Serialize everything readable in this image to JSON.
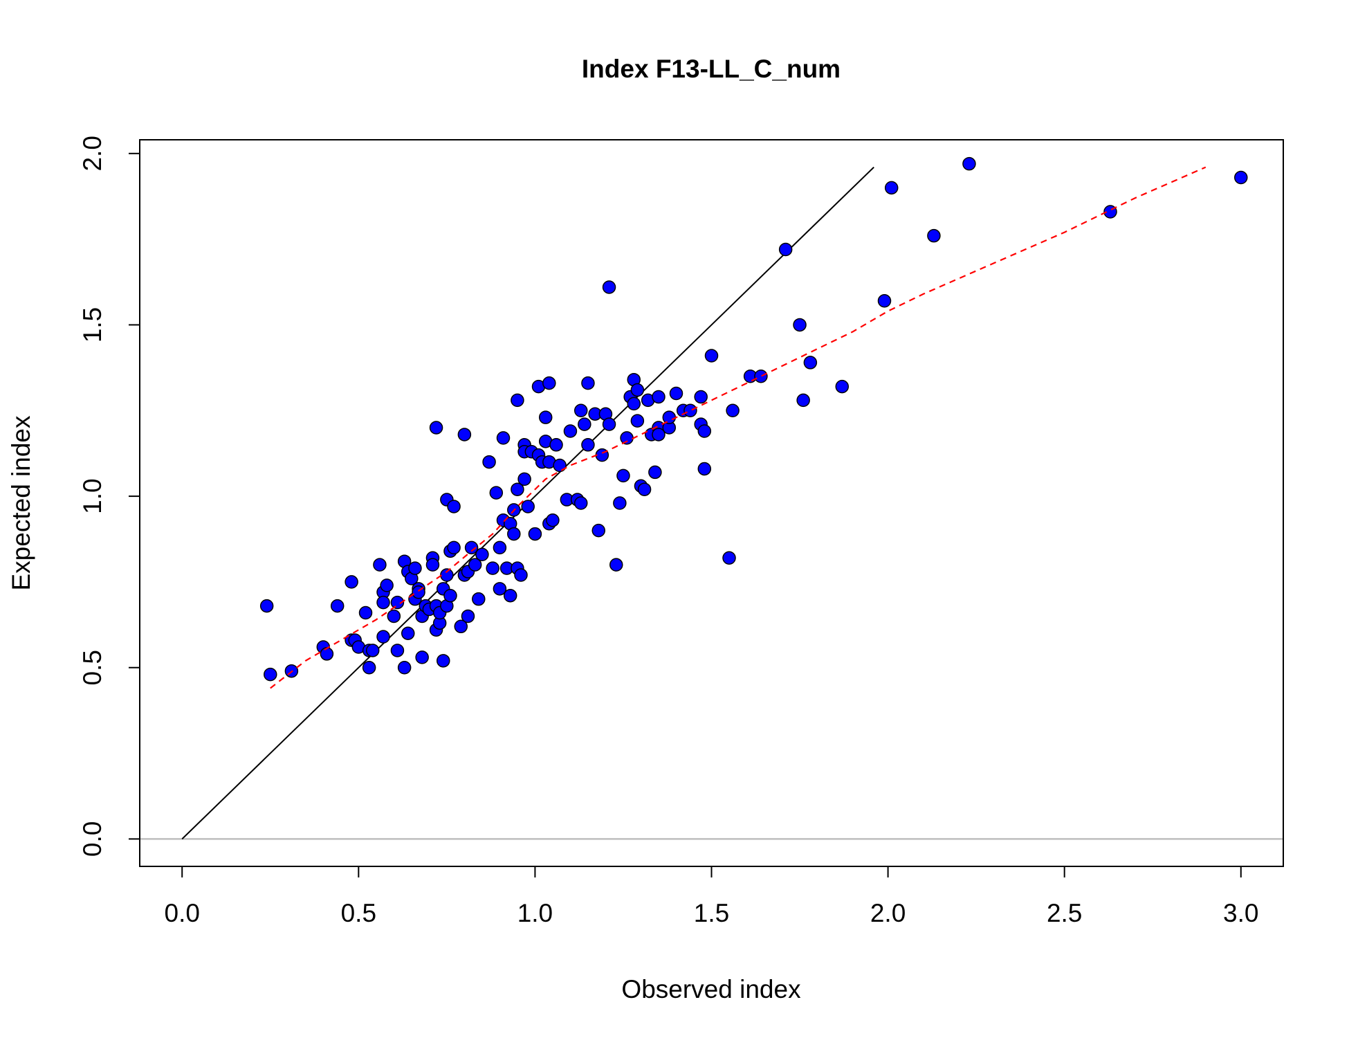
{
  "chart_data": {
    "type": "scatter",
    "title": "Index F13-LL_C_num",
    "xlabel": "Observed index",
    "ylabel": "Expected index",
    "xlim": [
      -0.12,
      3.12
    ],
    "ylim": [
      -0.08,
      2.04
    ],
    "xticks": [
      "0.0",
      "0.5",
      "1.0",
      "1.5",
      "2.0",
      "2.5",
      "3.0"
    ],
    "yticks": [
      "0.0",
      "0.5",
      "1.0",
      "1.5",
      "2.0"
    ],
    "grid": false,
    "colors": {
      "points_fill": "#0000ff",
      "points_stroke": "#000000",
      "identity_line": "#000000",
      "smooth_line": "#ff0000",
      "zero_line": "#bebebe"
    },
    "points": [
      [
        0.24,
        0.68
      ],
      [
        0.25,
        0.48
      ],
      [
        0.31,
        0.49
      ],
      [
        0.4,
        0.56
      ],
      [
        0.41,
        0.54
      ],
      [
        0.44,
        0.68
      ],
      [
        0.48,
        0.58
      ],
      [
        0.48,
        0.75
      ],
      [
        0.49,
        0.58
      ],
      [
        0.5,
        0.56
      ],
      [
        0.52,
        0.66
      ],
      [
        0.53,
        0.55
      ],
      [
        0.53,
        0.5
      ],
      [
        0.54,
        0.55
      ],
      [
        0.56,
        0.8
      ],
      [
        0.57,
        0.72
      ],
      [
        0.57,
        0.69
      ],
      [
        0.57,
        0.59
      ],
      [
        0.58,
        0.74
      ],
      [
        0.6,
        0.65
      ],
      [
        0.61,
        0.69
      ],
      [
        0.61,
        0.55
      ],
      [
        0.63,
        0.81
      ],
      [
        0.63,
        0.5
      ],
      [
        0.64,
        0.78
      ],
      [
        0.64,
        0.6
      ],
      [
        0.65,
        0.76
      ],
      [
        0.66,
        0.79
      ],
      [
        0.66,
        0.7
      ],
      [
        0.67,
        0.73
      ],
      [
        0.67,
        0.72
      ],
      [
        0.68,
        0.65
      ],
      [
        0.68,
        0.53
      ],
      [
        0.69,
        0.68
      ],
      [
        0.7,
        0.67
      ],
      [
        0.71,
        0.82
      ],
      [
        0.71,
        0.8
      ],
      [
        0.72,
        1.2
      ],
      [
        0.72,
        0.68
      ],
      [
        0.72,
        0.61
      ],
      [
        0.73,
        0.63
      ],
      [
        0.73,
        0.66
      ],
      [
        0.74,
        0.73
      ],
      [
        0.74,
        0.52
      ],
      [
        0.75,
        0.77
      ],
      [
        0.75,
        0.68
      ],
      [
        0.75,
        0.99
      ],
      [
        0.76,
        0.84
      ],
      [
        0.76,
        0.71
      ],
      [
        0.77,
        0.97
      ],
      [
        0.77,
        0.85
      ],
      [
        0.79,
        0.62
      ],
      [
        0.8,
        1.18
      ],
      [
        0.8,
        0.77
      ],
      [
        0.81,
        0.78
      ],
      [
        0.81,
        0.65
      ],
      [
        0.82,
        0.85
      ],
      [
        0.83,
        0.8
      ],
      [
        0.84,
        0.7
      ],
      [
        0.85,
        0.83
      ],
      [
        0.87,
        1.1
      ],
      [
        0.88,
        0.79
      ],
      [
        0.89,
        1.01
      ],
      [
        0.9,
        0.73
      ],
      [
        0.9,
        0.85
      ],
      [
        0.91,
        1.17
      ],
      [
        0.91,
        0.93
      ],
      [
        0.92,
        0.79
      ],
      [
        0.93,
        0.92
      ],
      [
        0.93,
        0.71
      ],
      [
        0.94,
        0.96
      ],
      [
        0.94,
        0.89
      ],
      [
        0.95,
        0.79
      ],
      [
        0.95,
        1.28
      ],
      [
        0.95,
        1.02
      ],
      [
        0.96,
        0.77
      ],
      [
        0.97,
        1.15
      ],
      [
        0.97,
        1.13
      ],
      [
        0.97,
        1.05
      ],
      [
        0.98,
        0.97
      ],
      [
        0.99,
        1.13
      ],
      [
        1.0,
        0.89
      ],
      [
        1.01,
        1.32
      ],
      [
        1.01,
        1.12
      ],
      [
        1.02,
        1.1
      ],
      [
        1.03,
        1.16
      ],
      [
        1.03,
        1.23
      ],
      [
        1.04,
        1.1
      ],
      [
        1.04,
        0.92
      ],
      [
        1.04,
        1.33
      ],
      [
        1.05,
        0.93
      ],
      [
        1.06,
        1.15
      ],
      [
        1.07,
        1.09
      ],
      [
        1.09,
        0.99
      ],
      [
        1.1,
        1.19
      ],
      [
        1.12,
        0.99
      ],
      [
        1.13,
        1.25
      ],
      [
        1.13,
        0.98
      ],
      [
        1.14,
        1.21
      ],
      [
        1.15,
        1.33
      ],
      [
        1.15,
        1.15
      ],
      [
        1.17,
        1.24
      ],
      [
        1.18,
        0.9
      ],
      [
        1.19,
        1.12
      ],
      [
        1.2,
        1.24
      ],
      [
        1.21,
        1.21
      ],
      [
        1.21,
        1.61
      ],
      [
        1.23,
        0.8
      ],
      [
        1.24,
        0.98
      ],
      [
        1.25,
        1.06
      ],
      [
        1.26,
        1.17
      ],
      [
        1.27,
        1.29
      ],
      [
        1.28,
        1.27
      ],
      [
        1.28,
        1.34
      ],
      [
        1.29,
        1.22
      ],
      [
        1.29,
        1.31
      ],
      [
        1.3,
        1.03
      ],
      [
        1.31,
        1.02
      ],
      [
        1.32,
        1.28
      ],
      [
        1.33,
        1.18
      ],
      [
        1.34,
        1.07
      ],
      [
        1.35,
        1.2
      ],
      [
        1.35,
        1.29
      ],
      [
        1.35,
        1.18
      ],
      [
        1.38,
        1.2
      ],
      [
        1.38,
        1.23
      ],
      [
        1.4,
        1.3
      ],
      [
        1.42,
        1.25
      ],
      [
        1.44,
        1.25
      ],
      [
        1.47,
        1.21
      ],
      [
        1.47,
        1.29
      ],
      [
        1.48,
        1.08
      ],
      [
        1.48,
        1.19
      ],
      [
        1.5,
        1.41
      ],
      [
        1.55,
        0.82
      ],
      [
        1.56,
        1.25
      ],
      [
        1.61,
        1.35
      ],
      [
        1.64,
        1.35
      ],
      [
        1.71,
        1.72
      ],
      [
        1.75,
        1.5
      ],
      [
        1.76,
        1.28
      ],
      [
        1.78,
        1.39
      ],
      [
        1.87,
        1.32
      ],
      [
        1.99,
        1.57
      ],
      [
        2.01,
        1.9
      ],
      [
        2.13,
        1.76
      ],
      [
        2.23,
        1.97
      ],
      [
        2.63,
        1.83
      ],
      [
        3.0,
        1.93
      ]
    ],
    "identity_line": [
      [
        0.0,
        0.0
      ],
      [
        1.96,
        1.96
      ]
    ],
    "smooth_line": [
      [
        0.25,
        0.44
      ],
      [
        0.35,
        0.52
      ],
      [
        0.45,
        0.58
      ],
      [
        0.55,
        0.64
      ],
      [
        0.65,
        0.71
      ],
      [
        0.75,
        0.78
      ],
      [
        0.82,
        0.84
      ],
      [
        0.88,
        0.89
      ],
      [
        0.95,
        0.97
      ],
      [
        1.03,
        1.05
      ],
      [
        1.1,
        1.09
      ],
      [
        1.2,
        1.13
      ],
      [
        1.3,
        1.18
      ],
      [
        1.4,
        1.23
      ],
      [
        1.5,
        1.28
      ],
      [
        1.6,
        1.33
      ],
      [
        1.7,
        1.38
      ],
      [
        1.8,
        1.43
      ],
      [
        1.9,
        1.48
      ],
      [
        2.0,
        1.54
      ],
      [
        2.1,
        1.59
      ],
      [
        2.3,
        1.68
      ],
      [
        2.5,
        1.77
      ],
      [
        2.7,
        1.87
      ],
      [
        2.9,
        1.96
      ]
    ]
  }
}
